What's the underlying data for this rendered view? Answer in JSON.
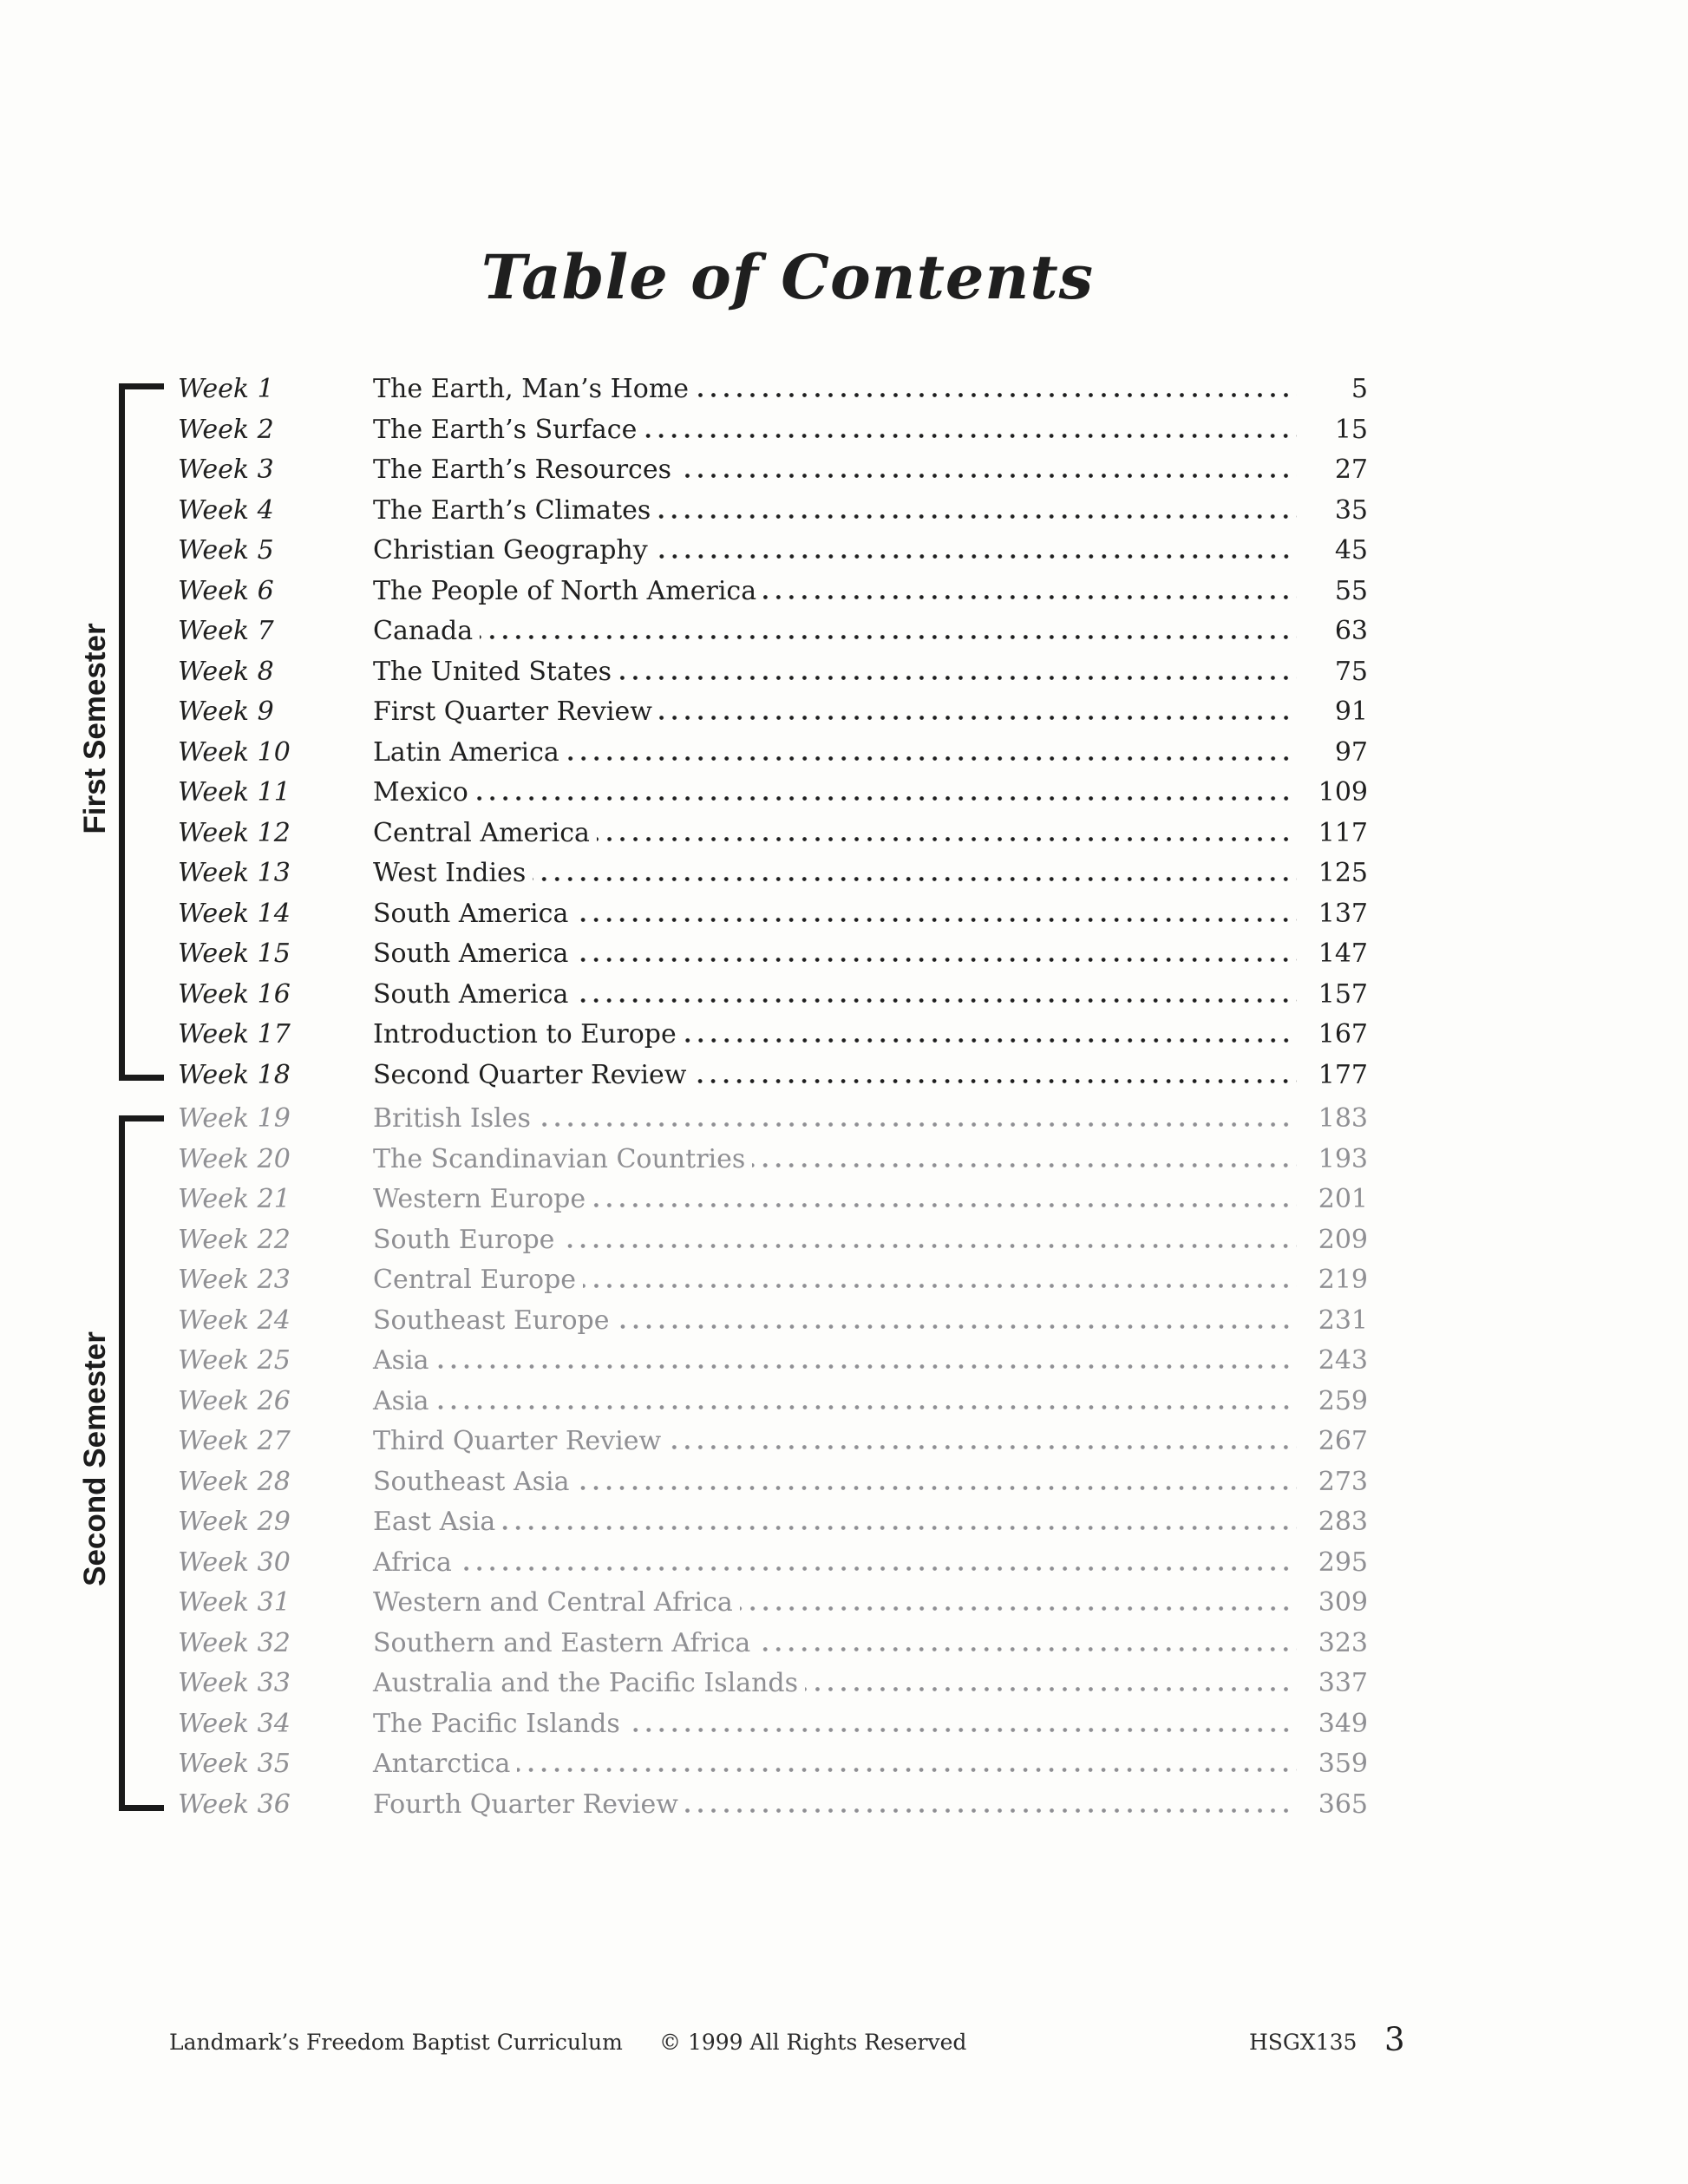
{
  "title": "Table of Contents",
  "colors": {
    "first_semester_text": "#1f1f1f",
    "second_semester_text": "#8f8f93",
    "bracket": "#1a1a1a"
  },
  "semesters": [
    {
      "label": "First Semester",
      "entries": [
        {
          "week": "Week 1",
          "title": "The Earth, Man’s Home",
          "page": "5"
        },
        {
          "week": "Week 2",
          "title": "The Earth’s Surface",
          "page": "15"
        },
        {
          "week": "Week 3",
          "title": "The Earth’s Resources",
          "page": "27"
        },
        {
          "week": "Week 4",
          "title": "The Earth’s Climates",
          "page": "35"
        },
        {
          "week": "Week 5",
          "title": "Christian Geography",
          "page": "45"
        },
        {
          "week": "Week 6",
          "title": "The People of North America",
          "page": "55"
        },
        {
          "week": "Week 7",
          "title": "Canada",
          "page": "63"
        },
        {
          "week": "Week 8",
          "title": "The United States",
          "page": "75"
        },
        {
          "week": "Week 9",
          "title": "First Quarter Review",
          "page": "91"
        },
        {
          "week": "Week 10",
          "title": "Latin America",
          "page": "97"
        },
        {
          "week": "Week 11",
          "title": "Mexico",
          "page": "109"
        },
        {
          "week": "Week 12",
          "title": "Central America",
          "page": "117"
        },
        {
          "week": "Week 13",
          "title": "West Indies",
          "page": "125"
        },
        {
          "week": "Week 14",
          "title": "South America",
          "page": "137"
        },
        {
          "week": "Week 15",
          "title": "South America",
          "page": "147"
        },
        {
          "week": "Week 16",
          "title": "South America",
          "page": "157"
        },
        {
          "week": "Week 17",
          "title": "Introduction to Europe",
          "page": "167"
        },
        {
          "week": "Week 18",
          "title": "Second Quarter Review",
          "page": "177"
        }
      ]
    },
    {
      "label": "Second Semester",
      "entries": [
        {
          "week": "Week 19",
          "title": "British Isles",
          "page": "183"
        },
        {
          "week": "Week 20",
          "title": "The Scandinavian Countries",
          "page": "193"
        },
        {
          "week": "Week 21",
          "title": "Western Europe",
          "page": "201"
        },
        {
          "week": "Week 22",
          "title": "South Europe",
          "page": "209"
        },
        {
          "week": "Week 23",
          "title": "Central Europe",
          "page": "219"
        },
        {
          "week": "Week 24",
          "title": "Southeast Europe",
          "page": "231"
        },
        {
          "week": "Week 25",
          "title": "Asia",
          "page": "243"
        },
        {
          "week": "Week 26",
          "title": "Asia",
          "page": "259"
        },
        {
          "week": "Week 27",
          "title": "Third Quarter Review",
          "page": "267"
        },
        {
          "week": "Week 28",
          "title": "Southeast Asia",
          "page": "273"
        },
        {
          "week": "Week 29",
          "title": "East Asia",
          "page": "283"
        },
        {
          "week": "Week 30",
          "title": "Africa",
          "page": "295"
        },
        {
          "week": "Week 31",
          "title": "Western and Central Africa",
          "page": "309"
        },
        {
          "week": "Week 32",
          "title": "Southern and Eastern Africa",
          "page": "323"
        },
        {
          "week": "Week 33",
          "title": "Australia and the Pacific Islands",
          "page": "337"
        },
        {
          "week": "Week 34",
          "title": "The Pacific Islands",
          "page": "349"
        },
        {
          "week": "Week 35",
          "title": "Antarctica",
          "page": "359"
        },
        {
          "week": "Week 36",
          "title": "Fourth Quarter Review",
          "page": "365"
        }
      ]
    }
  ],
  "footer": {
    "publisher": "Landmark’s Freedom Baptist Curriculum",
    "copyright": "© 1999 All Rights Reserved",
    "code": "HSGX135",
    "page_number": "3"
  }
}
